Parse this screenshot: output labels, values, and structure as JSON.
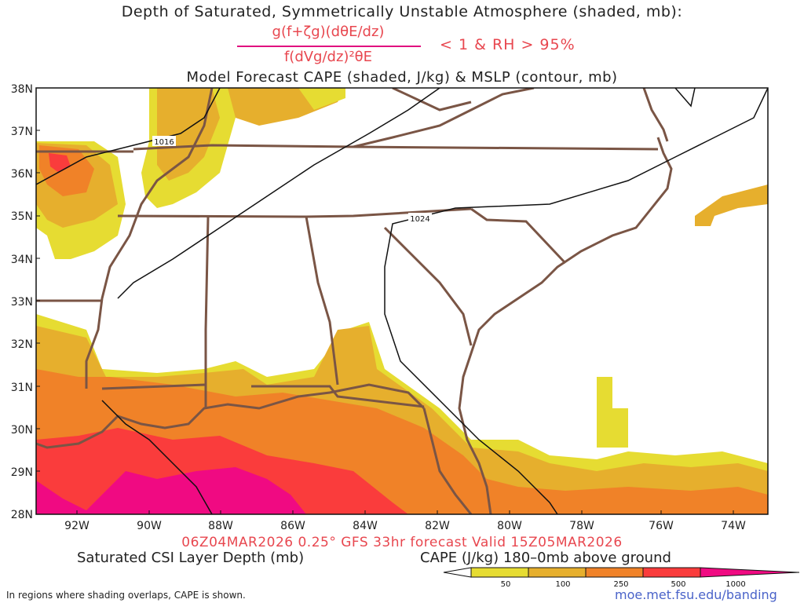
{
  "title_line1": "Depth of Saturated, Symmetrically Unstable Atmosphere (shaded, mb):",
  "fraction_numerator": "g(f+ζg)(dθE/dz)",
  "fraction_denominator": "f(dVg/dz)²θE",
  "fraction_condition": "< 1 & RH > 95%",
  "title_line2": "Model Forecast CAPE (shaded, J/kg) & MSLP (contour, mb)",
  "run_info": "06Z04MAR2026 0.25° GFS 33hr forecast Valid 15Z05MAR2026",
  "legend_left_label": "Saturated CSI Layer Depth (mb)",
  "legend_right_label": "CAPE (J/kg) 180–0mb above ground",
  "footnote": "In regions where shading overlaps, CAPE is shown.",
  "credit": "moe.met.fsu.edu/banding",
  "lat_labels": [
    "38N",
    "37N",
    "36N",
    "35N",
    "34N",
    "33N",
    "32N",
    "31N",
    "30N",
    "29N",
    "28N"
  ],
  "lon_labels": [
    "92W",
    "90W",
    "88W",
    "86W",
    "84W",
    "82W",
    "80W",
    "78W",
    "76W",
    "74W"
  ],
  "isobar_labels": [
    "1016",
    "1024"
  ],
  "cape_colorbar": {
    "ticks": [
      "50",
      "100",
      "250",
      "500",
      "1000"
    ],
    "colors": [
      "#ffffff",
      "#e6dc32",
      "#e6af2d",
      "#f08228",
      "#fa3c3c",
      "#f00a82"
    ]
  }
}
